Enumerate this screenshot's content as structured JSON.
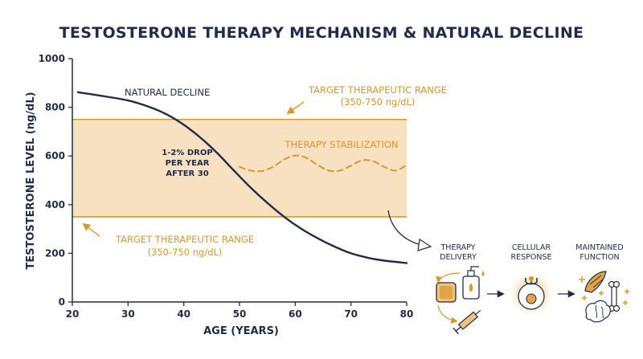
{
  "title": "TESTOSTERONE THERAPY MECHANISM & NATURAL DECLINE",
  "colors": {
    "navy": "#1f2c4a",
    "gold": "#d49a2a",
    "band_fill": "#f7e1c1",
    "axis": "#1f2c4a"
  },
  "chart_data": {
    "type": "line",
    "xlabel": "AGE (YEARS)",
    "ylabel": "TESTOSTERONE LEVEL (ng/dL)",
    "xlim": [
      20,
      80
    ],
    "ylim": [
      0,
      1000
    ],
    "xticks": [
      "20",
      "30",
      "40",
      "50",
      "60",
      "70",
      "80"
    ],
    "yticks": [
      "0",
      "200",
      "400",
      "600",
      "800",
      "1000"
    ],
    "grid": false,
    "series": [
      {
        "name": "NATURAL DECLINE",
        "color": "#1f2c4a",
        "x": [
          21,
          25,
          30,
          34,
          37,
          40,
          43,
          46,
          49,
          52,
          55,
          58,
          61,
          64,
          67,
          70,
          73,
          76,
          80
        ],
        "y": [
          862,
          848,
          828,
          800,
          770,
          728,
          675,
          612,
          540,
          470,
          407,
          350,
          302,
          262,
          228,
          200,
          182,
          170,
          160
        ]
      },
      {
        "name": "THERAPY STABILIZATION",
        "color": "#d49a2a",
        "x": [
          50,
          52,
          54,
          56,
          58,
          60,
          62,
          64,
          66,
          68,
          70,
          72,
          74,
          76,
          78,
          80
        ],
        "y": [
          555,
          540,
          538,
          555,
          585,
          602,
          592,
          563,
          540,
          540,
          560,
          582,
          578,
          555,
          540,
          563
        ]
      }
    ],
    "band": {
      "low": 350,
      "high": 750,
      "label_top": [
        "TARGET THERAPEUTIC RANGE",
        "(350-750 ng/dL)"
      ],
      "label_bottom": [
        "TARGET THERAPEUTIC RANGE",
        "(350-750 ng/dL)"
      ]
    },
    "annotations": {
      "decline_rate": [
        "1-2% DROP",
        "PER YEAR",
        "AFTER 30"
      ],
      "decline_label": "NATURAL DECLINE",
      "stabilization_label": "THERAPY STABILIZATION"
    }
  },
  "mechanism": {
    "steps": [
      {
        "label": [
          "THERAPY",
          "DELIVERY"
        ],
        "icon": "gel-patch-injection-icon"
      },
      {
        "label": [
          "CELLULAR",
          "RESPONSE"
        ],
        "icon": "cell-receptor-icon"
      },
      {
        "label": [
          "MAINTAINED",
          "FUNCTION"
        ],
        "icon": "muscle-bone-brain-icon"
      }
    ]
  }
}
